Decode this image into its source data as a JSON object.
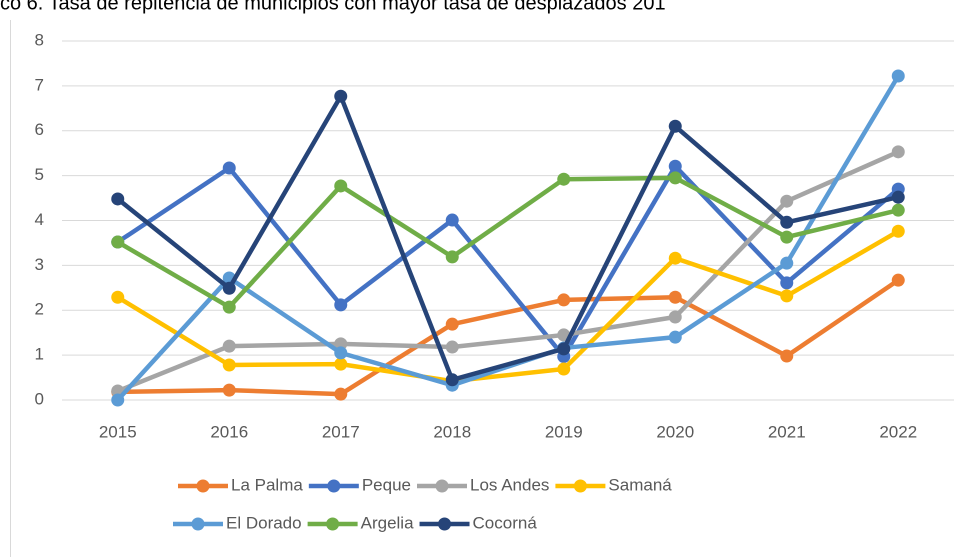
{
  "chart_data": {
    "type": "line",
    "title": "co 6. Tasa de repitencia de municipios con mayor tasa de desplazados 201",
    "categories": [
      "2015",
      "2016",
      "2017",
      "2018",
      "2019",
      "2020",
      "2021",
      "2022"
    ],
    "ylim": [
      0,
      8
    ],
    "yticks": [
      0,
      1,
      2,
      3,
      4,
      5,
      6,
      7,
      8
    ],
    "grid": true,
    "legend": "bottom",
    "series": [
      {
        "name": "La Palma",
        "color": "#ED7D31",
        "values": [
          0.18,
          0.22,
          0.13,
          1.69,
          2.23,
          2.29,
          0.98,
          2.67
        ]
      },
      {
        "name": "Peque",
        "color": "#4472C4",
        "values": [
          3.52,
          5.17,
          2.12,
          4.01,
          0.97,
          5.21,
          2.61,
          4.7
        ]
      },
      {
        "name": "Los Andes",
        "color": "#A5A5A5",
        "values": [
          0.2,
          1.2,
          1.25,
          1.18,
          1.45,
          1.85,
          4.43,
          5.53
        ]
      },
      {
        "name": "Samaná",
        "color": "#FFC000",
        "values": [
          2.29,
          0.78,
          0.8,
          0.42,
          0.69,
          3.16,
          2.32,
          3.76
        ]
      },
      {
        "name": "El Dorado",
        "color": "#5B9BD5",
        "values": [
          0,
          2.72,
          1.05,
          0.33,
          1.16,
          1.4,
          3.05,
          7.22
        ]
      },
      {
        "name": "Argelia",
        "color": "#70AD47",
        "values": [
          3.52,
          2.07,
          4.77,
          3.19,
          4.92,
          4.95,
          3.63,
          4.23
        ]
      },
      {
        "name": "Cocorná",
        "color": "#264478",
        "values": [
          4.48,
          2.49,
          6.77,
          0.45,
          1.14,
          6.1,
          3.96,
          4.52
        ]
      }
    ]
  }
}
